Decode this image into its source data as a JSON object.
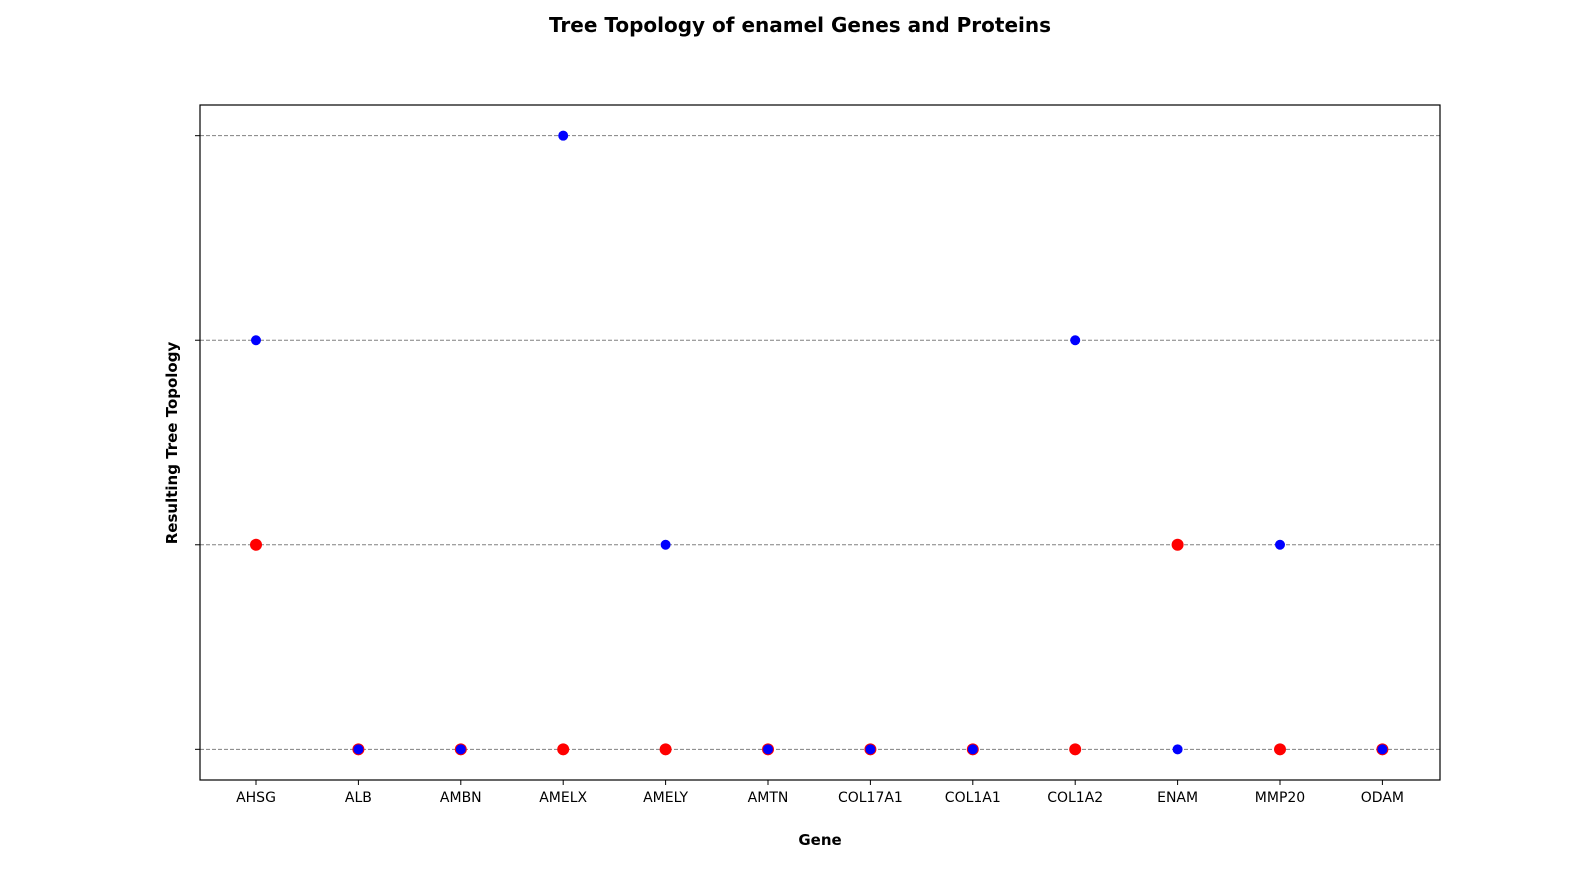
{
  "chart_data": {
    "type": "scatter",
    "title": "Tree Topology of enamel Genes and Proteins",
    "xlabel": "Gene",
    "ylabel": "Resulting Tree Topology",
    "categories": [
      "AHSG",
      "ALB",
      "AMBN",
      "AMELX",
      "AMELY",
      "AMTN",
      "COL17A1",
      "COL1A1",
      "COL1A2",
      "ENAM",
      "MMP20",
      "ODAM"
    ],
    "ylim": [
      0.85,
      4.15
    ],
    "y_gridlines": [
      1,
      2,
      3,
      4
    ],
    "y_ticklabels_shown": false,
    "grid": "horizontal dashed",
    "series": [
      {
        "color": "#ff0000",
        "points": [
          {
            "x": "AHSG",
            "y": 2
          },
          {
            "x": "ALB",
            "y": 1
          },
          {
            "x": "AMBN",
            "y": 1
          },
          {
            "x": "AMELX",
            "y": 1
          },
          {
            "x": "AMELY",
            "y": 1
          },
          {
            "x": "AMTN",
            "y": 1
          },
          {
            "x": "COL17A1",
            "y": 1
          },
          {
            "x": "COL1A1",
            "y": 1
          },
          {
            "x": "COL1A2",
            "y": 1
          },
          {
            "x": "ENAM",
            "y": 2
          },
          {
            "x": "MMP20",
            "y": 1
          },
          {
            "x": "ODAM",
            "y": 1
          }
        ]
      },
      {
        "color": "#0000ff",
        "points": [
          {
            "x": "AHSG",
            "y": 3
          },
          {
            "x": "ALB",
            "y": 1
          },
          {
            "x": "AMBN",
            "y": 1
          },
          {
            "x": "AMELX",
            "y": 4
          },
          {
            "x": "AMELY",
            "y": 2
          },
          {
            "x": "AMTN",
            "y": 1
          },
          {
            "x": "COL17A1",
            "y": 1
          },
          {
            "x": "COL1A1",
            "y": 1
          },
          {
            "x": "COL1A2",
            "y": 3
          },
          {
            "x": "ENAM",
            "y": 1
          },
          {
            "x": "MMP20",
            "y": 2
          },
          {
            "x": "ODAM",
            "y": 1
          }
        ]
      }
    ]
  }
}
